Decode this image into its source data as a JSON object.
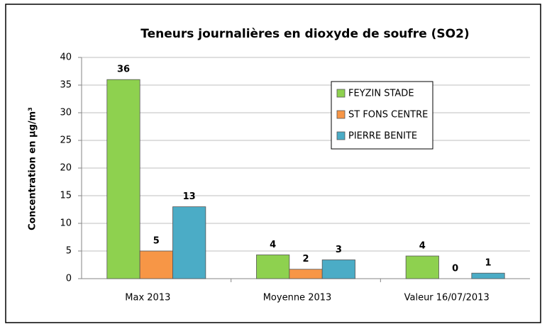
{
  "chart_data": {
    "type": "bar",
    "title": "Teneurs journalières en dioxyde de soufre (SO2)",
    "y_label": "Concentration en µg/m³",
    "categories": [
      "Max 2013",
      "Moyenne 2013",
      "Valeur 16/07/2013"
    ],
    "series": [
      {
        "name": "FEYZIN STADE",
        "color": "#8ed14f",
        "values": [
          36,
          4.3,
          4.1
        ],
        "value_labels": [
          "36",
          "4",
          "4"
        ]
      },
      {
        "name": "ST FONS CENTRE",
        "color": "#f79646",
        "values": [
          5,
          1.7,
          0
        ],
        "value_labels": [
          "5",
          "2",
          "0"
        ]
      },
      {
        "name": "PIERRE BENITE",
        "color": "#4bacc6",
        "values": [
          13,
          3.4,
          1
        ],
        "value_labels": [
          "13",
          "3",
          "1"
        ]
      }
    ],
    "ylim": [
      0,
      40
    ],
    "yticks": [
      0,
      5,
      10,
      15,
      20,
      25,
      30,
      35,
      40
    ],
    "grid": true,
    "legend": "top-right"
  }
}
